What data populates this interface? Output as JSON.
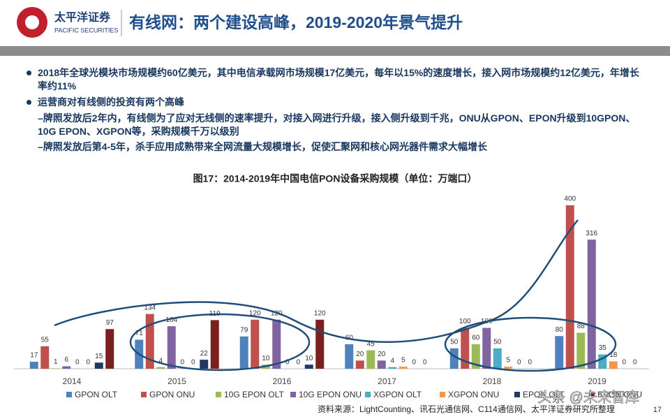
{
  "header": {
    "logo_cn": "太平洋证券",
    "logo_en": "PACIFIC SECURITIES",
    "title": "有线网：两个建设高峰，2019-2020年景气提升"
  },
  "bullets": [
    {
      "text": "2018年全球光模块市场规模约60亿美元，其中电信承载网市场规模17亿美元，每年以15%的速度增长，接入网市场规模约12亿美元，年增长率约11%",
      "subs": []
    },
    {
      "text": "运营商对有线侧的投资有两个高峰",
      "subs": [
        "–牌照发放后2年内，有线侧为了应对无线侧的速率提升，对接入网进行升级，接入侧升级到千兆，ONU从GPON、EPON升级到10GPON、10G EPON、XGPON等，采购规模千万以级别",
        "–牌照发放后第4-5年，杀手应用成熟带来全网流量大规模增长，促使汇聚网和核心网光器件需求大幅增长"
      ]
    }
  ],
  "chart_data": {
    "type": "bar",
    "title": "图17：2014-2019年中国电信PON设备采购规模（单位：万端口）",
    "categories": [
      "2014",
      "2015",
      "2016",
      "2017",
      "2018",
      "2019"
    ],
    "series": [
      {
        "name": "GPON OLT",
        "color": "#4f81bd",
        "values": [
          17,
          71,
          79,
          60,
          50,
          80
        ]
      },
      {
        "name": "GPON ONU",
        "color": "#c0504d",
        "values": [
          55,
          134,
          120,
          20,
          100,
          400
        ]
      },
      {
        "name": "10G EPON OLT",
        "color": "#9bbb59",
        "values": [
          1,
          4,
          10,
          45,
          60,
          88
        ]
      },
      {
        "name": "10G EPON ONU",
        "color": "#8064a2",
        "values": [
          6,
          104,
          120,
          20,
          100,
          316
        ]
      },
      {
        "name": "XGPON OLT",
        "color": "#4bacc6",
        "values": [
          0,
          0,
          0,
          4,
          50,
          35
        ]
      },
      {
        "name": "XGPON ONU",
        "color": "#f79646",
        "values": [
          0,
          0,
          0,
          5,
          5,
          18
        ]
      },
      {
        "name": "EPON OLT",
        "color": "#1f3864",
        "values": [
          15,
          22,
          10,
          0,
          0,
          0
        ]
      },
      {
        "name": "EPON ONU",
        "color": "#7b1f1f",
        "values": [
          97,
          119,
          120,
          0,
          0,
          0
        ]
      }
    ]
  },
  "source": "资料来源：LightCounting、讯石光通信网、C114通信网、太平洋证券研究所整理",
  "page_number": "17",
  "watermark": "头条 @未来智库"
}
